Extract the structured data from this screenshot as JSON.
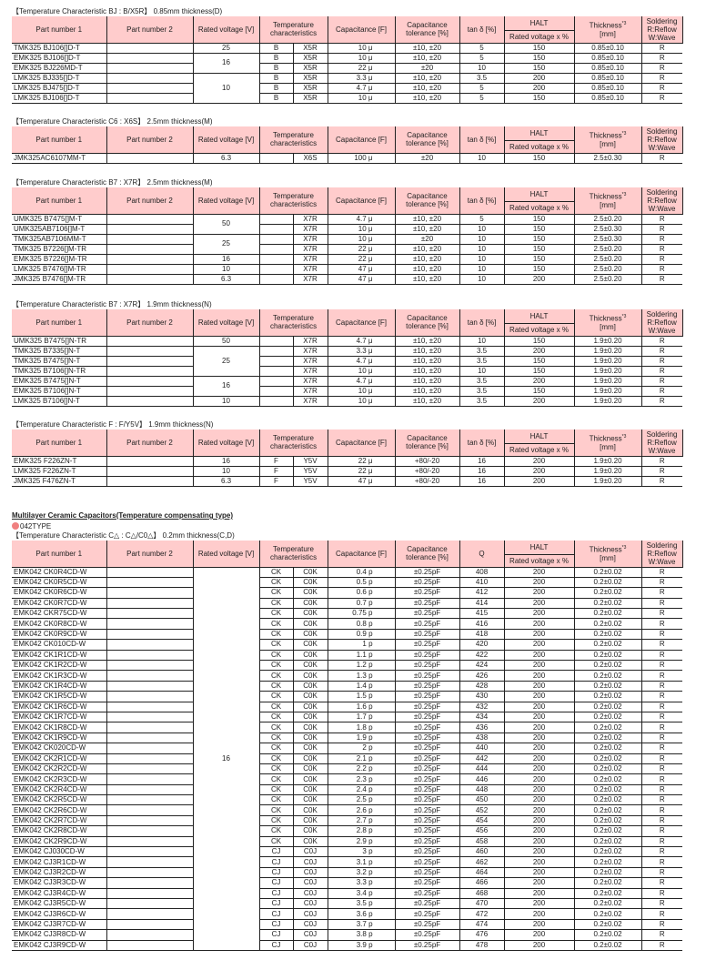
{
  "headers": {
    "part1": "Part number 1",
    "part2": "Part number 2",
    "voltage": "Rated voltage [V]",
    "temp": "Temperature characteristics",
    "cap": "Capacitance [F]",
    "tol": "Capacitance tolerance [%]",
    "tan": "tan δ [%]",
    "q": "Q",
    "halt": "HALT",
    "halt_sub": "Rated voltage x %",
    "thick": "Thickness",
    "thick_note": "*3",
    "sol": "Soldering R:Reflow W:Wave"
  },
  "heading": "Multilayer Ceramic Capacitors(Temperature compensating type)",
  "type_label": "042TYPE",
  "accent_color": "#ffcccc",
  "bullet_color": "#f08080",
  "sections": [
    {
      "title": "【Temperature Characteristic BJ : B/X5R】 0.85mm thickness(D)",
      "fourth": "tan",
      "voltage_groups": [
        {
          "value": "25",
          "rows": 1
        },
        {
          "value": "16",
          "rows": 2
        },
        {
          "value": "10",
          "rows": 3
        }
      ],
      "rows": [
        [
          "TMK325 BJ106[]D-T",
          "",
          "B",
          "X5R",
          "10 μ",
          "±10, ±20",
          "5",
          "150",
          "0.85±0.10",
          "R"
        ],
        [
          "EMK325 BJ106[]D-T",
          "",
          "B",
          "X5R",
          "10 μ",
          "±10, ±20",
          "5",
          "150",
          "0.85±0.10",
          "R"
        ],
        [
          "EMK325 BJ226MD-T",
          "",
          "B",
          "X5R",
          "22 μ",
          "±20",
          "10",
          "150",
          "0.85±0.10",
          "R"
        ],
        [
          "LMK325 BJ335[]D-T",
          "",
          "B",
          "X5R",
          "3.3 μ",
          "±10, ±20",
          "3.5",
          "200",
          "0.85±0.10",
          "R"
        ],
        [
          "LMK325 BJ475[]D-T",
          "",
          "B",
          "X5R",
          "4.7 μ",
          "±10, ±20",
          "5",
          "200",
          "0.85±0.10",
          "R"
        ],
        [
          "LMK325 BJ106[]D-T",
          "",
          "B",
          "X5R",
          "10 μ",
          "±10, ±20",
          "5",
          "150",
          "0.85±0.10",
          "R"
        ]
      ]
    },
    {
      "title": "【Temperature Characteristic C6 : X6S】 2.5mm thickness(M)",
      "fourth": "tan",
      "voltage_groups": [
        {
          "value": "6.3",
          "rows": 1
        }
      ],
      "rows": [
        [
          "JMK325AC6107MM-T",
          "",
          "",
          "X6S",
          "100 μ",
          "±20",
          "10",
          "150",
          "2.5±0.30",
          "R"
        ]
      ]
    },
    {
      "title": "【Temperature Characteristic B7 : X7R】 2.5mm thickness(M)",
      "fourth": "tan",
      "voltage_groups": [
        {
          "value": "50",
          "rows": 2
        },
        {
          "value": "25",
          "rows": 2
        },
        {
          "value": "16",
          "rows": 1
        },
        {
          "value": "10",
          "rows": 1
        },
        {
          "value": "6.3",
          "rows": 1
        }
      ],
      "rows": [
        [
          "UMK325 B7475[]M-T",
          "",
          "",
          "X7R",
          "4.7 μ",
          "±10, ±20",
          "5",
          "150",
          "2.5±0.20",
          "R"
        ],
        [
          "UMK325AB7106[]M-T",
          "",
          "",
          "X7R",
          "10 μ",
          "±10, ±20",
          "10",
          "150",
          "2.5±0.30",
          "R"
        ],
        [
          "TMK325AB7106MM-T",
          "",
          "",
          "X7R",
          "10 μ",
          "±20",
          "10",
          "150",
          "2.5±0.30",
          "R"
        ],
        [
          "TMK325 B7226[]M-TR",
          "",
          "",
          "X7R",
          "22 μ",
          "±10, ±20",
          "10",
          "150",
          "2.5±0.20",
          "R"
        ],
        [
          "EMK325 B7226[]M-TR",
          "",
          "",
          "X7R",
          "22 μ",
          "±10, ±20",
          "10",
          "150",
          "2.5±0.20",
          "R"
        ],
        [
          "LMK325 B7476[]M-TR",
          "",
          "",
          "X7R",
          "47 μ",
          "±10, ±20",
          "10",
          "150",
          "2.5±0.20",
          "R"
        ],
        [
          "JMK325 B7476[]M-TR",
          "",
          "",
          "X7R",
          "47 μ",
          "±10, ±20",
          "10",
          "200",
          "2.5±0.20",
          "R"
        ]
      ]
    },
    {
      "title": "【Temperature Characteristic B7 : X7R】 1.9mm thickness(N)",
      "fourth": "tan",
      "voltage_groups": [
        {
          "value": "50",
          "rows": 1
        },
        {
          "value": "25",
          "rows": 3
        },
        {
          "value": "16",
          "rows": 2
        },
        {
          "value": "10",
          "rows": 1
        }
      ],
      "rows": [
        [
          "UMK325 B7475[]N-TR",
          "",
          "",
          "X7R",
          "4.7 μ",
          "±10, ±20",
          "10",
          "150",
          "1.9±0.20",
          "R"
        ],
        [
          "TMK325 B7335[]N-T",
          "",
          "",
          "X7R",
          "3.3 μ",
          "±10, ±20",
          "3.5",
          "200",
          "1.9±0.20",
          "R"
        ],
        [
          "TMK325 B7475[]N-T",
          "",
          "",
          "X7R",
          "4.7 μ",
          "±10, ±20",
          "3.5",
          "150",
          "1.9±0.20",
          "R"
        ],
        [
          "TMK325 B7106[]N-TR",
          "",
          "",
          "X7R",
          "10 μ",
          "±10, ±20",
          "10",
          "150",
          "1.9±0.20",
          "R"
        ],
        [
          "EMK325 B7475[]N-T",
          "",
          "",
          "X7R",
          "4.7 μ",
          "±10, ±20",
          "3.5",
          "200",
          "1.9±0.20",
          "R"
        ],
        [
          "EMK325 B7106[]N-T",
          "",
          "",
          "X7R",
          "10 μ",
          "±10, ±20",
          "3.5",
          "150",
          "1.9±0.20",
          "R"
        ],
        [
          "LMK325 B7106[]N-T",
          "",
          "",
          "X7R",
          "10 μ",
          "±10, ±20",
          "3.5",
          "200",
          "1.9±0.20",
          "R"
        ]
      ]
    },
    {
      "title": "【Temperature Characteristic F : F/Y5V】 1.9mm thickness(N)",
      "fourth": "tan",
      "voltage_groups": [
        {
          "value": "16",
          "rows": 1
        },
        {
          "value": "10",
          "rows": 1
        },
        {
          "value": "6.3",
          "rows": 1
        }
      ],
      "rows": [
        [
          "EMK325  F226ZN-T",
          "",
          "F",
          "Y5V",
          "22 μ",
          "+80/-20",
          "16",
          "200",
          "1.9±0.20",
          "R"
        ],
        [
          "LMK325  F226ZN-T",
          "",
          "F",
          "Y5V",
          "22 μ",
          "+80/-20",
          "16",
          "200",
          "1.9±0.20",
          "R"
        ],
        [
          "JMK325  F476ZN-T",
          "",
          "F",
          "Y5V",
          "47 μ",
          "+80/-20",
          "16",
          "200",
          "1.9±0.20",
          "R"
        ]
      ]
    },
    {
      "title": "【Temperature Characteristic  C△ : C△/C0△】 0.2mm thickness(C,D)",
      "fourth": "q",
      "voltage_groups": [
        {
          "value": "16",
          "rows": 37
        }
      ],
      "rows": [
        [
          "EMK042 CK0R4CD-W",
          "",
          "CK",
          "C0K",
          "0.4 p",
          "±0.25pF",
          "408",
          "200",
          "0.2±0.02",
          "R"
        ],
        [
          "EMK042 CK0R5CD-W",
          "",
          "CK",
          "C0K",
          "0.5 p",
          "±0.25pF",
          "410",
          "200",
          "0.2±0.02",
          "R"
        ],
        [
          "EMK042 CK0R6CD-W",
          "",
          "CK",
          "C0K",
          "0.6 p",
          "±0.25pF",
          "412",
          "200",
          "0.2±0.02",
          "R"
        ],
        [
          "EMK042 CK0R7CD-W",
          "",
          "CK",
          "C0K",
          "0.7 p",
          "±0.25pF",
          "414",
          "200",
          "0.2±0.02",
          "R"
        ],
        [
          "EMK042 CKR75CD-W",
          "",
          "CK",
          "C0K",
          "0.75 p",
          "±0.25pF",
          "415",
          "200",
          "0.2±0.02",
          "R"
        ],
        [
          "EMK042 CK0R8CD-W",
          "",
          "CK",
          "C0K",
          "0.8 p",
          "±0.25pF",
          "416",
          "200",
          "0.2±0.02",
          "R"
        ],
        [
          "EMK042 CK0R9CD-W",
          "",
          "CK",
          "C0K",
          "0.9 p",
          "±0.25pF",
          "418",
          "200",
          "0.2±0.02",
          "R"
        ],
        [
          "EMK042 CK010CD-W",
          "",
          "CK",
          "C0K",
          "1 p",
          "±0.25pF",
          "420",
          "200",
          "0.2±0.02",
          "R"
        ],
        [
          "EMK042 CK1R1CD-W",
          "",
          "CK",
          "C0K",
          "1.1 p",
          "±0.25pF",
          "422",
          "200",
          "0.2±0.02",
          "R"
        ],
        [
          "EMK042 CK1R2CD-W",
          "",
          "CK",
          "C0K",
          "1.2 p",
          "±0.25pF",
          "424",
          "200",
          "0.2±0.02",
          "R"
        ],
        [
          "EMK042 CK1R3CD-W",
          "",
          "CK",
          "C0K",
          "1.3 p",
          "±0.25pF",
          "426",
          "200",
          "0.2±0.02",
          "R"
        ],
        [
          "EMK042 CK1R4CD-W",
          "",
          "CK",
          "C0K",
          "1.4 p",
          "±0.25pF",
          "428",
          "200",
          "0.2±0.02",
          "R"
        ],
        [
          "EMK042 CK1R5CD-W",
          "",
          "CK",
          "C0K",
          "1.5 p",
          "±0.25pF",
          "430",
          "200",
          "0.2±0.02",
          "R"
        ],
        [
          "EMK042 CK1R6CD-W",
          "",
          "CK",
          "C0K",
          "1.6 p",
          "±0.25pF",
          "432",
          "200",
          "0.2±0.02",
          "R"
        ],
        [
          "EMK042 CK1R7CD-W",
          "",
          "CK",
          "C0K",
          "1.7 p",
          "±0.25pF",
          "434",
          "200",
          "0.2±0.02",
          "R"
        ],
        [
          "EMK042 CK1R8CD-W",
          "",
          "CK",
          "C0K",
          "1.8 p",
          "±0.25pF",
          "436",
          "200",
          "0.2±0.02",
          "R"
        ],
        [
          "EMK042 CK1R9CD-W",
          "",
          "CK",
          "C0K",
          "1.9 p",
          "±0.25pF",
          "438",
          "200",
          "0.2±0.02",
          "R"
        ],
        [
          "EMK042 CK020CD-W",
          "",
          "CK",
          "C0K",
          "2 p",
          "±0.25pF",
          "440",
          "200",
          "0.2±0.02",
          "R"
        ],
        [
          "EMK042 CK2R1CD-W",
          "",
          "CK",
          "C0K",
          "2.1 p",
          "±0.25pF",
          "442",
          "200",
          "0.2±0.02",
          "R"
        ],
        [
          "EMK042 CK2R2CD-W",
          "",
          "CK",
          "C0K",
          "2.2 p",
          "±0.25pF",
          "444",
          "200",
          "0.2±0.02",
          "R"
        ],
        [
          "EMK042 CK2R3CD-W",
          "",
          "CK",
          "C0K",
          "2.3 p",
          "±0.25pF",
          "446",
          "200",
          "0.2±0.02",
          "R"
        ],
        [
          "EMK042 CK2R4CD-W",
          "",
          "CK",
          "C0K",
          "2.4 p",
          "±0.25pF",
          "448",
          "200",
          "0.2±0.02",
          "R"
        ],
        [
          "EMK042 CK2R5CD-W",
          "",
          "CK",
          "C0K",
          "2.5 p",
          "±0.25pF",
          "450",
          "200",
          "0.2±0.02",
          "R"
        ],
        [
          "EMK042 CK2R6CD-W",
          "",
          "CK",
          "C0K",
          "2.6 p",
          "±0.25pF",
          "452",
          "200",
          "0.2±0.02",
          "R"
        ],
        [
          "EMK042 CK2R7CD-W",
          "",
          "CK",
          "C0K",
          "2.7 p",
          "±0.25pF",
          "454",
          "200",
          "0.2±0.02",
          "R"
        ],
        [
          "EMK042 CK2R8CD-W",
          "",
          "CK",
          "C0K",
          "2.8 p",
          "±0.25pF",
          "456",
          "200",
          "0.2±0.02",
          "R"
        ],
        [
          "EMK042 CK2R9CD-W",
          "",
          "CK",
          "C0K",
          "2.9 p",
          "±0.25pF",
          "458",
          "200",
          "0.2±0.02",
          "R"
        ],
        [
          "EMK042 CJ030CD-W",
          "",
          "CJ",
          "C0J",
          "3 p",
          "±0.25pF",
          "460",
          "200",
          "0.2±0.02",
          "R"
        ],
        [
          "EMK042 CJ3R1CD-W",
          "",
          "CJ",
          "C0J",
          "3.1 p",
          "±0.25pF",
          "462",
          "200",
          "0.2±0.02",
          "R"
        ],
        [
          "EMK042 CJ3R2CD-W",
          "",
          "CJ",
          "C0J",
          "3.2 p",
          "±0.25pF",
          "464",
          "200",
          "0.2±0.02",
          "R"
        ],
        [
          "EMK042 CJ3R3CD-W",
          "",
          "CJ",
          "C0J",
          "3.3 p",
          "±0.25pF",
          "466",
          "200",
          "0.2±0.02",
          "R"
        ],
        [
          "EMK042 CJ3R4CD-W",
          "",
          "CJ",
          "C0J",
          "3.4 p",
          "±0.25pF",
          "468",
          "200",
          "0.2±0.02",
          "R"
        ],
        [
          "EMK042 CJ3R5CD-W",
          "",
          "CJ",
          "C0J",
          "3.5 p",
          "±0.25pF",
          "470",
          "200",
          "0.2±0.02",
          "R"
        ],
        [
          "EMK042 CJ3R6CD-W",
          "",
          "CJ",
          "C0J",
          "3.6 p",
          "±0.25pF",
          "472",
          "200",
          "0.2±0.02",
          "R"
        ],
        [
          "EMK042 CJ3R7CD-W",
          "",
          "CJ",
          "C0J",
          "3.7 p",
          "±0.25pF",
          "474",
          "200",
          "0.2±0.02",
          "R"
        ],
        [
          "EMK042 CJ3R8CD-W",
          "",
          "CJ",
          "C0J",
          "3.8 p",
          "±0.25pF",
          "476",
          "200",
          "0.2±0.02",
          "R"
        ],
        [
          "EMK042 CJ3R9CD-W",
          "",
          "CJ",
          "C0J",
          "3.9 p",
          "±0.25pF",
          "478",
          "200",
          "0.2±0.02",
          "R"
        ]
      ]
    }
  ]
}
